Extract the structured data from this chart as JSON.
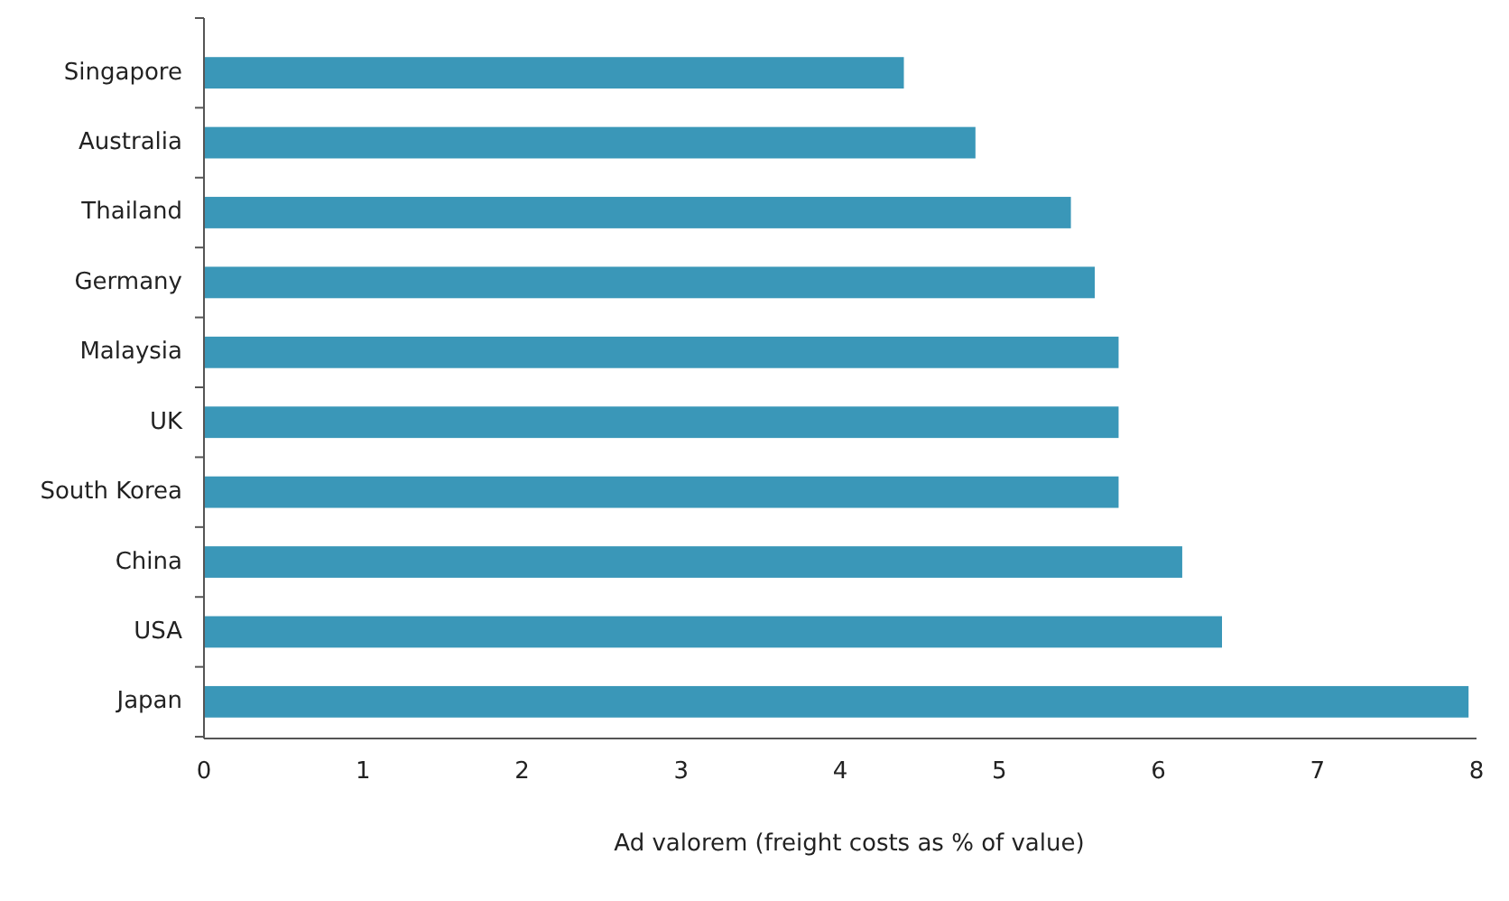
{
  "chart_data": {
    "type": "bar",
    "orientation": "horizontal",
    "xlabel": "Ad valorem (freight costs as % of value)",
    "categories": [
      "Singapore",
      "Australia",
      "Thailand",
      "Germany",
      "Malaysia",
      "UK",
      "South Korea",
      "China",
      "USA",
      "Japan"
    ],
    "values": [
      4.4,
      4.85,
      5.45,
      5.6,
      5.75,
      5.75,
      5.75,
      6.15,
      6.4,
      7.95
    ],
    "color": "#3a97b8",
    "xlim": [
      0,
      8
    ],
    "xticks": [
      0,
      1,
      2,
      3,
      4,
      5,
      6,
      7,
      8
    ],
    "grid": false
  }
}
